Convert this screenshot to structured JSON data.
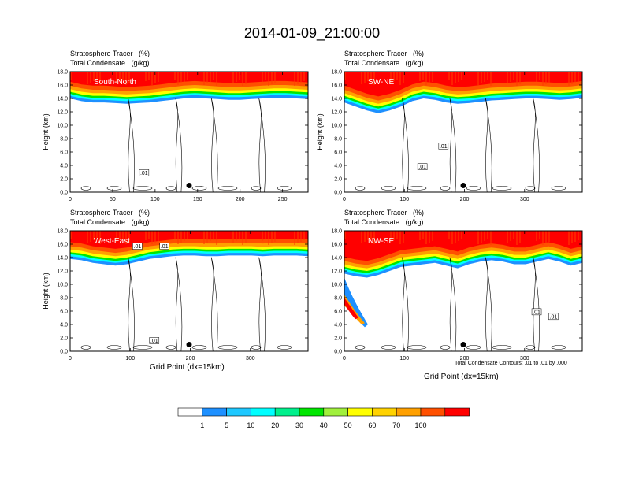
{
  "title": "2014-01-09_21:00:00",
  "header_line1": "Stratosphere Tracer   (%)",
  "header_line2": "Total Condensate   (g/kg)",
  "colors": {
    "bins": [
      "#ffffff",
      "#1e90ff",
      "#1ec8ff",
      "#00ffff",
      "#00f08c",
      "#00e600",
      "#a0f03c",
      "#ffff00",
      "#ffd200",
      "#ffa000",
      "#ff5000",
      "#ff0000"
    ]
  },
  "chart_data": [
    {
      "type": "heatmap",
      "panel_label": "South-North",
      "ylabel": "Height (km)",
      "xlabel": "",
      "xlim": [
        0,
        280
      ],
      "ylim": [
        0,
        18
      ],
      "xticks": [
        0,
        50,
        100,
        150,
        200,
        250
      ],
      "yticks": [
        "0.0",
        "2.0",
        "4.0",
        "6.0",
        "8.0",
        "10.0",
        "12.0",
        "14.0",
        "16.0",
        "18.0"
      ],
      "marker": {
        "x": 140,
        "y": 1.0
      },
      "contour_labels": [
        {
          "text": ".01",
          "x": 87,
          "y": 2.9
        }
      ],
      "tropopause_km": [
        15.2,
        14.8,
        14.6,
        14.6,
        14.5,
        14.4,
        14.5,
        14.6,
        14.8,
        15.0,
        15.2,
        15.3,
        15.2,
        15.1,
        15.0,
        15.0,
        15.1,
        15.2,
        15.3,
        15.3,
        15.2,
        15.1
      ]
    },
    {
      "type": "heatmap",
      "panel_label": "SW-NE",
      "ylabel": "Height (km)",
      "xlabel": "",
      "xlim": [
        0,
        396
      ],
      "ylim": [
        0,
        18
      ],
      "xticks": [
        0,
        100,
        200,
        300
      ],
      "yticks": [
        "0.0",
        "2.0",
        "4.0",
        "6.0",
        "8.0",
        "10.0",
        "12.0",
        "14.0",
        "16.0",
        "18.0"
      ],
      "marker": {
        "x": 198,
        "y": 1.0
      },
      "contour_labels": [
        {
          "text": ".01",
          "x": 165,
          "y": 6.9
        },
        {
          "text": ".01",
          "x": 130,
          "y": 3.8
        }
      ],
      "tropopause_km": [
        14.6,
        14.0,
        13.4,
        13.0,
        13.4,
        14.0,
        14.8,
        15.2,
        15.0,
        14.6,
        14.4,
        14.5,
        14.7,
        14.9,
        15.0,
        15.1,
        15.2,
        15.2,
        15.1,
        15.0,
        15.1,
        15.3
      ]
    },
    {
      "type": "heatmap",
      "panel_label": "West-East",
      "ylabel": "Height (km)",
      "xlabel": "Grid Point (dx=15km)",
      "xlim": [
        0,
        396
      ],
      "ylim": [
        0,
        18
      ],
      "xticks": [
        0,
        100,
        200,
        300
      ],
      "yticks": [
        "0.0",
        "2.0",
        "4.0",
        "6.0",
        "8.0",
        "10.0",
        "12.0",
        "14.0",
        "16.0",
        "18.0"
      ],
      "marker": {
        "x": 198,
        "y": 1.0
      },
      "contour_labels": [
        {
          "text": ".01",
          "x": 112,
          "y": 15.7
        },
        {
          "text": ".01",
          "x": 157,
          "y": 15.7
        },
        {
          "text": ".01",
          "x": 140,
          "y": 1.6
        }
      ],
      "tropopause_km": [
        15.0,
        14.8,
        14.4,
        14.2,
        14.0,
        14.2,
        14.6,
        15.0,
        15.2,
        15.4,
        15.5,
        15.5,
        15.4,
        15.4,
        15.5,
        15.5,
        15.5,
        15.4,
        15.5,
        15.5,
        15.5,
        15.4
      ]
    },
    {
      "type": "heatmap",
      "panel_label": "NW-SE",
      "ylabel": "",
      "xlabel": "Grid Point (dx=15km)",
      "xlim": [
        0,
        396
      ],
      "ylim": [
        0,
        18
      ],
      "xticks": [
        0,
        100,
        200,
        300
      ],
      "yticks": [
        "0.0",
        "2.0",
        "4.0",
        "6.0",
        "8.0",
        "10.0",
        "12.0",
        "14.0",
        "16.0",
        "18.0"
      ],
      "marker": {
        "x": 198,
        "y": 1.0
      },
      "contour_labels": [
        {
          "text": ".01",
          "x": 320,
          "y": 5.9
        },
        {
          "text": ".01",
          "x": 348,
          "y": 5.2
        }
      ],
      "tropopause_km": [
        12.8,
        12.4,
        12.2,
        12.6,
        13.2,
        13.8,
        14.0,
        14.2,
        14.4,
        14.0,
        13.6,
        14.2,
        14.6,
        14.8,
        14.6,
        14.2,
        14.2,
        14.6,
        15.0,
        14.6,
        14.0,
        14.4
      ]
    }
  ],
  "footnote": "Total Condensate Contours: .01 to .01 by .000",
  "colorbar": {
    "labels": [
      "1",
      "5",
      "10",
      "20",
      "30",
      "40",
      "50",
      "60",
      "70",
      "100"
    ]
  }
}
